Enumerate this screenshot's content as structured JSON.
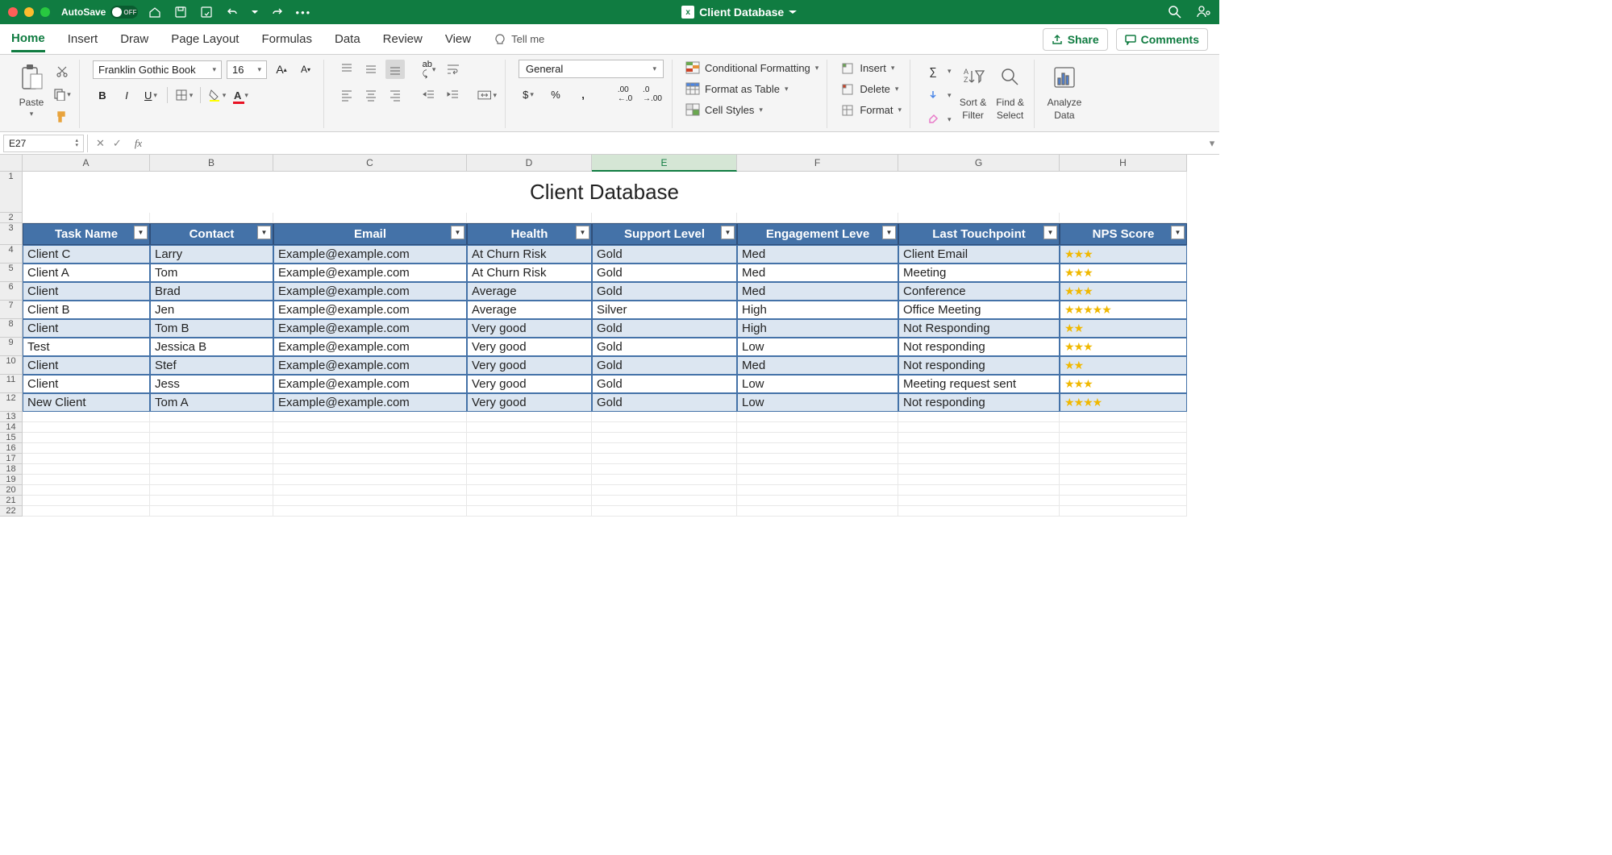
{
  "title": "Client Database",
  "autosave_label": "AutoSave",
  "autosave_state": "OFF",
  "tabs": [
    "Home",
    "Insert",
    "Draw",
    "Page Layout",
    "Formulas",
    "Data",
    "Review",
    "View"
  ],
  "active_tab": 0,
  "tellme": "Tell me",
  "share": "Share",
  "comments": "Comments",
  "font_name": "Franklin Gothic Book",
  "font_size": "16",
  "number_format": "General",
  "paste_label": "Paste",
  "sortfilter": [
    "Sort &",
    "Filter"
  ],
  "findselect": [
    "Find &",
    "Select"
  ],
  "analyze": [
    "Analyze",
    "Data"
  ],
  "styles": {
    "cond": "Conditional Formatting",
    "fmtTable": "Format as Table",
    "cellStyles": "Cell Styles"
  },
  "cells": {
    "insert": "Insert",
    "delete": "Delete",
    "format": "Format"
  },
  "namebox": "E27",
  "col_letters": [
    "A",
    "B",
    "C",
    "D",
    "E",
    "F",
    "G",
    "H"
  ],
  "selected_col": 4,
  "sheet_title": "Client Database",
  "headers": [
    "Task Name",
    "Contact",
    "Email",
    "Health",
    "Support Level",
    "Engagement Leve",
    "Last Touchpoint",
    "NPS Score"
  ],
  "rows": [
    {
      "band": true,
      "c": [
        "Client C",
        "Larry",
        "Example@example.com",
        "At Churn Risk",
        "Gold",
        "Med",
        "Client Email",
        "★★★"
      ]
    },
    {
      "band": false,
      "c": [
        "Client A",
        "Tom",
        "Example@example.com",
        "At Churn Risk",
        "Gold",
        "Med",
        "Meeting",
        "★★★"
      ]
    },
    {
      "band": true,
      "c": [
        "Client",
        "Brad",
        "Example@example.com",
        "Average",
        "Gold",
        "Med",
        "Conference",
        "★★★"
      ]
    },
    {
      "band": false,
      "c": [
        "Client B",
        "Jen",
        "Example@example.com",
        "Average",
        "Silver",
        "High",
        "Office Meeting",
        "★★★★★"
      ]
    },
    {
      "band": true,
      "c": [
        "Client",
        "Tom B",
        "Example@example.com",
        "Very good",
        "Gold",
        "High",
        "Not Responding",
        "★★"
      ]
    },
    {
      "band": false,
      "c": [
        "Test",
        "Jessica B",
        "Example@example.com",
        "Very good",
        "Gold",
        "Low",
        "Not responding",
        "★★★"
      ]
    },
    {
      "band": true,
      "c": [
        "Client",
        "Stef",
        "Example@example.com",
        "Very good",
        "Gold",
        "Med",
        "Not responding",
        "★★"
      ]
    },
    {
      "band": false,
      "c": [
        "Client",
        "Jess",
        "Example@example.com",
        "Very good",
        "Gold",
        "Low",
        "Meeting request sent",
        "★★★"
      ]
    },
    {
      "band": true,
      "c": [
        "New Client",
        "Tom A",
        "Example@example.com",
        "Very good",
        "Gold",
        "Low",
        "Not responding",
        "★★★★"
      ]
    }
  ],
  "empty_rows": [
    13,
    14,
    15,
    16,
    17,
    18,
    19,
    20,
    21,
    22
  ]
}
